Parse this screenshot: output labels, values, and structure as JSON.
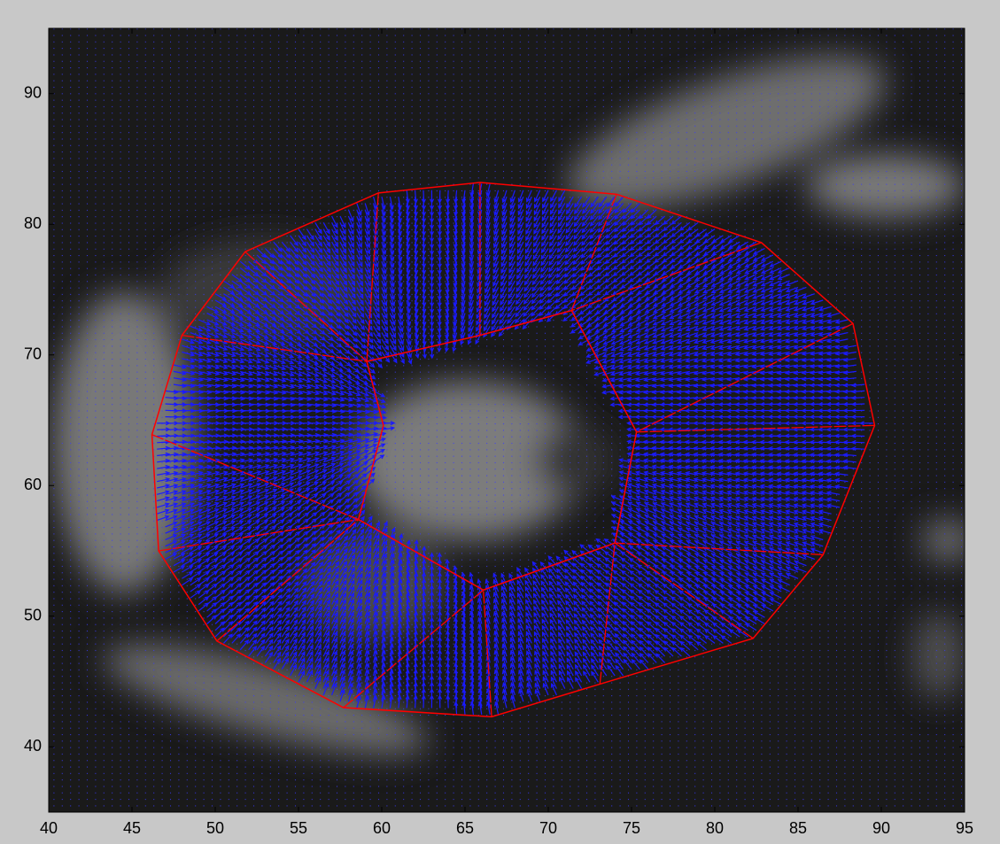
{
  "chart_data": {
    "type": "mesh",
    "xlim": [
      40,
      95
    ],
    "ylim": [
      35,
      95
    ],
    "xticks": [
      40,
      45,
      50,
      55,
      60,
      65,
      70,
      75,
      80,
      85,
      90,
      95
    ],
    "yticks": [
      40,
      50,
      60,
      70,
      80,
      90
    ],
    "series": [
      {
        "color": "#ff0000",
        "x": [
          59.8,
          65.9,
          74.1,
          82.8,
          88.3,
          89.6,
          86.5,
          82.3,
          73.1,
          66.6,
          57.7,
          50.1,
          46.6,
          46.2,
          48.0,
          51.8
        ],
        "values": [
          82.4,
          83.2,
          82.3,
          78.6,
          72.4,
          64.6,
          54.7,
          48.3,
          44.8,
          42.3,
          43.0,
          48.1,
          55.0,
          63.9,
          71.5,
          77.9
        ]
      },
      {
        "color": "#ff0000",
        "x": [
          59.1,
          65.9,
          71.4,
          75.3,
          74.0,
          66.1,
          58.6,
          60.1
        ],
        "values": [
          69.5,
          71.5,
          73.4,
          64.1,
          55.6,
          52.0,
          57.4,
          64.6
        ]
      }
    ]
  }
}
